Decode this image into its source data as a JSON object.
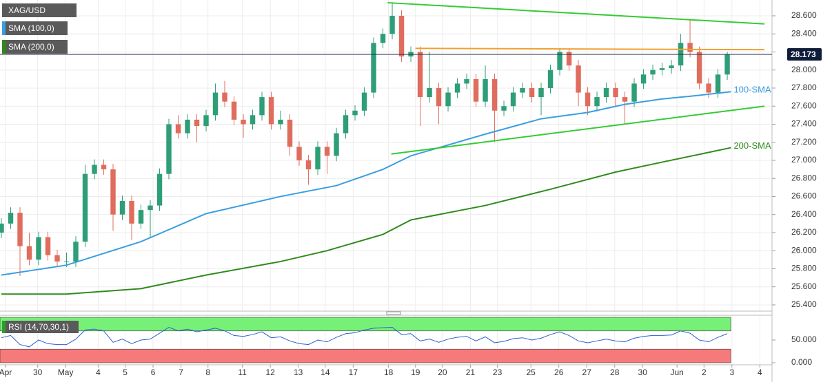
{
  "chart_data": [
    {
      "type": "candlestick",
      "name": "XAG/USD",
      "up_color": "#2e9e76",
      "down_color": "#e06c5e",
      "x": [
        0,
        1,
        2,
        3,
        4,
        5,
        6,
        7,
        8,
        9,
        10,
        11,
        12,
        13,
        14,
        15,
        16,
        17,
        18,
        19,
        20,
        21,
        22,
        23,
        24,
        25,
        26,
        27,
        28,
        29,
        30,
        31,
        32,
        33,
        34,
        35,
        36,
        37,
        38,
        39,
        40,
        41,
        42,
        43,
        44,
        45,
        46,
        47,
        48,
        49,
        50,
        51,
        52,
        53,
        54,
        55,
        56,
        57,
        58,
        59,
        60,
        61,
        62,
        63,
        64,
        65,
        66,
        67,
        68,
        69,
        70,
        71,
        72,
        73,
        74,
        75,
        76,
        77,
        78
      ],
      "ohlc": [
        [
          26.2,
          26.36,
          26.14,
          26.3
        ],
        [
          26.3,
          26.48,
          26.24,
          26.42
        ],
        [
          26.42,
          26.48,
          25.72,
          26.05
        ],
        [
          26.05,
          26.2,
          25.84,
          25.9
        ],
        [
          25.9,
          26.21,
          25.84,
          26.15
        ],
        [
          26.15,
          26.21,
          25.89,
          25.95
        ],
        [
          25.95,
          26.01,
          25.82,
          25.88
        ],
        [
          25.88,
          25.98,
          25.82,
          25.88
        ],
        [
          25.88,
          26.16,
          25.82,
          26.1
        ],
        [
          26.1,
          26.95,
          26.04,
          26.85
        ],
        [
          26.85,
          27.01,
          26.79,
          26.95
        ],
        [
          26.95,
          27.01,
          26.84,
          26.9
        ],
        [
          26.9,
          26.96,
          26.22,
          26.4
        ],
        [
          26.4,
          26.61,
          26.34,
          26.55
        ],
        [
          26.55,
          26.61,
          26.12,
          26.3
        ],
        [
          26.3,
          26.51,
          26.24,
          26.45
        ],
        [
          26.45,
          26.56,
          26.15,
          26.5
        ],
        [
          26.5,
          26.91,
          26.44,
          26.85
        ],
        [
          26.85,
          27.46,
          26.79,
          27.4
        ],
        [
          27.4,
          27.5,
          27.24,
          27.3
        ],
        [
          27.3,
          27.51,
          27.24,
          27.45
        ],
        [
          27.45,
          27.51,
          27.2,
          27.38
        ],
        [
          27.38,
          27.56,
          27.32,
          27.5
        ],
        [
          27.5,
          27.85,
          27.44,
          27.75
        ],
        [
          27.75,
          27.88,
          27.59,
          27.65
        ],
        [
          27.65,
          27.71,
          27.39,
          27.45
        ],
        [
          27.45,
          27.51,
          27.25,
          27.4
        ],
        [
          27.4,
          27.56,
          27.34,
          27.5
        ],
        [
          27.5,
          27.76,
          27.44,
          27.7
        ],
        [
          27.7,
          27.76,
          27.34,
          27.4
        ],
        [
          27.4,
          27.55,
          27.34,
          27.45
        ],
        [
          27.45,
          27.51,
          27.05,
          27.15
        ],
        [
          27.15,
          27.21,
          26.94,
          27.0
        ],
        [
          27.0,
          27.06,
          26.73,
          26.9
        ],
        [
          26.9,
          27.21,
          26.84,
          27.15
        ],
        [
          27.15,
          27.21,
          26.85,
          27.05
        ],
        [
          27.05,
          27.36,
          26.99,
          27.3
        ],
        [
          27.3,
          27.56,
          27.24,
          27.5
        ],
        [
          27.5,
          27.61,
          27.44,
          27.55
        ],
        [
          27.55,
          27.81,
          27.49,
          27.75
        ],
        [
          27.75,
          28.36,
          27.69,
          28.3
        ],
        [
          28.3,
          28.46,
          28.24,
          28.4
        ],
        [
          28.4,
          28.75,
          28.34,
          28.6
        ],
        [
          28.6,
          28.66,
          28.09,
          28.15
        ],
        [
          28.15,
          28.26,
          28.09,
          28.2
        ],
        [
          28.2,
          28.26,
          27.38,
          27.7
        ],
        [
          27.7,
          28.2,
          27.64,
          27.8
        ],
        [
          27.8,
          27.86,
          27.4,
          27.6
        ],
        [
          27.6,
          27.81,
          27.54,
          27.75
        ],
        [
          27.75,
          27.91,
          27.69,
          27.85
        ],
        [
          27.85,
          27.96,
          27.79,
          27.9
        ],
        [
          27.9,
          27.96,
          27.59,
          27.65
        ],
        [
          27.65,
          28.05,
          27.59,
          27.9
        ],
        [
          27.9,
          27.96,
          27.2,
          27.55
        ],
        [
          27.55,
          27.66,
          27.49,
          27.6
        ],
        [
          27.6,
          27.81,
          27.54,
          27.75
        ],
        [
          27.75,
          27.86,
          27.69,
          27.8
        ],
        [
          27.8,
          27.86,
          27.64,
          27.7
        ],
        [
          27.7,
          27.86,
          27.5,
          27.8
        ],
        [
          27.8,
          28.06,
          27.74,
          28.0
        ],
        [
          28.0,
          28.23,
          27.94,
          28.2
        ],
        [
          28.2,
          28.23,
          27.99,
          28.05
        ],
        [
          28.05,
          28.11,
          27.6,
          27.75
        ],
        [
          27.75,
          27.81,
          27.5,
          27.6
        ],
        [
          27.6,
          27.76,
          27.54,
          27.7
        ],
        [
          27.7,
          27.86,
          27.64,
          27.8
        ],
        [
          27.8,
          27.86,
          27.6,
          27.7
        ],
        [
          27.7,
          27.76,
          27.4,
          27.65
        ],
        [
          27.65,
          27.91,
          27.59,
          27.85
        ],
        [
          27.85,
          28.01,
          27.79,
          27.95
        ],
        [
          27.95,
          28.06,
          27.89,
          28.0
        ],
        [
          28.0,
          28.08,
          27.94,
          28.02
        ],
        [
          28.02,
          28.11,
          27.96,
          28.05
        ],
        [
          28.05,
          28.4,
          27.99,
          28.3
        ],
        [
          28.3,
          28.55,
          28.14,
          28.2
        ],
        [
          28.2,
          28.26,
          27.79,
          27.85
        ],
        [
          27.85,
          27.91,
          27.69,
          27.75
        ],
        [
          27.75,
          28.01,
          27.69,
          27.95
        ],
        [
          27.95,
          28.2,
          27.89,
          28.173
        ]
      ],
      "series": [
        {
          "name": "SMA (100,0)",
          "label": "100-SMA",
          "color": "#3a9ee0",
          "x": [
            0,
            7,
            15,
            22,
            30,
            36,
            41,
            44,
            52,
            58,
            63,
            67,
            71,
            75,
            78.4
          ],
          "values": [
            25.73,
            25.84,
            26.1,
            26.41,
            26.6,
            26.72,
            26.9,
            27.05,
            27.29,
            27.46,
            27.53,
            27.62,
            27.68,
            27.72,
            27.76
          ]
        },
        {
          "name": "SMA (200,0)",
          "label": "200-SMA",
          "color": "#2f8a1d",
          "x": [
            0,
            7,
            15,
            22,
            30,
            35,
            41,
            44,
            52,
            59,
            66,
            71,
            78.4
          ],
          "values": [
            25.52,
            25.52,
            25.58,
            25.73,
            25.88,
            26.0,
            26.18,
            26.34,
            26.5,
            26.68,
            26.87,
            26.98,
            27.14
          ]
        }
      ],
      "trendlines": [
        {
          "color": "#33cc33",
          "x": [
            41.5,
            82
          ],
          "values": [
            28.745,
            28.51
          ]
        },
        {
          "color": "#f0a030",
          "x": [
            44.5,
            82
          ],
          "values": [
            28.24,
            28.225
          ]
        },
        {
          "color": "#33cc33",
          "x": [
            41.9,
            82
          ],
          "values": [
            27.07,
            27.6
          ]
        }
      ],
      "last_price": 28.173,
      "xlim": [
        -0.148,
        82.81
      ],
      "xticks": [
        {
          "value": 0.44,
          "label": "Apr"
        },
        {
          "value": 3.9,
          "label": "30"
        },
        {
          "value": 6.9,
          "label": "May"
        },
        {
          "value": 10.4,
          "label": "4"
        },
        {
          "value": 13.3,
          "label": "5"
        },
        {
          "value": 16.3,
          "label": "6"
        },
        {
          "value": 19.3,
          "label": "7"
        },
        {
          "value": 22.2,
          "label": "8"
        },
        {
          "value": 25.9,
          "label": "11"
        },
        {
          "value": 28.9,
          "label": "12"
        },
        {
          "value": 31.9,
          "label": "13"
        },
        {
          "value": 34.8,
          "label": "14"
        },
        {
          "value": 37.8,
          "label": "17"
        },
        {
          "value": 41.6,
          "label": "18"
        },
        {
          "value": 44.5,
          "label": "19"
        },
        {
          "value": 47.4,
          "label": "20"
        },
        {
          "value": 50.4,
          "label": "21"
        },
        {
          "value": 53.3,
          "label": "23"
        },
        {
          "value": 56.9,
          "label": "25"
        },
        {
          "value": 59.9,
          "label": "26"
        },
        {
          "value": 62.9,
          "label": "27"
        },
        {
          "value": 65.9,
          "label": "28"
        },
        {
          "value": 68.9,
          "label": "30"
        },
        {
          "value": 72.6,
          "label": "Jun"
        },
        {
          "value": 75.5,
          "label": "2"
        },
        {
          "value": 78.5,
          "label": "3"
        },
        {
          "value": 81.5,
          "label": "4"
        }
      ],
      "ylim": [
        25.331,
        28.775
      ],
      "yticks": [
        {
          "value": 28.6,
          "label": "28.600"
        },
        {
          "value": 28.4,
          "label": "28.400"
        },
        {
          "value": 28.2,
          "label": "28.200"
        },
        {
          "value": 28.0,
          "label": "28.000"
        },
        {
          "value": 27.8,
          "label": "27.800"
        },
        {
          "value": 27.6,
          "label": "27.600"
        },
        {
          "value": 27.4,
          "label": "27.400"
        },
        {
          "value": 27.2,
          "label": "27.200"
        },
        {
          "value": 27.0,
          "label": "27.000"
        },
        {
          "value": 26.8,
          "label": "26.800"
        },
        {
          "value": 26.6,
          "label": "26.600"
        },
        {
          "value": 26.4,
          "label": "26.400"
        },
        {
          "value": 26.2,
          "label": "26.200"
        },
        {
          "value": 26.0,
          "label": "26.000"
        },
        {
          "value": 25.8,
          "label": "25.800"
        },
        {
          "value": 25.6,
          "label": "25.600"
        },
        {
          "value": 25.4,
          "label": "25.400"
        }
      ],
      "grid": true
    },
    {
      "type": "line",
      "name": "RSI (14,70,30,1)",
      "series": [
        {
          "color": "#2a5fd0",
          "values": [
            55,
            60,
            40,
            35,
            50,
            42,
            40,
            40,
            52,
            72,
            74,
            70,
            45,
            52,
            42,
            50,
            52,
            65,
            78,
            70,
            74,
            68,
            72,
            76,
            70,
            60,
            58,
            62,
            68,
            55,
            57,
            48,
            42,
            40,
            50,
            46,
            56,
            64,
            66,
            72,
            76,
            77,
            78,
            62,
            64,
            48,
            52,
            45,
            52,
            56,
            58,
            48,
            57,
            44,
            47,
            53,
            55,
            50,
            54,
            62,
            68,
            60,
            48,
            44,
            48,
            52,
            48,
            46,
            54,
            58,
            60,
            60,
            61,
            70,
            65,
            50,
            46,
            56,
            64
          ]
        }
      ],
      "overbought": 70,
      "overbought_color": "#77f077",
      "oversold": 30,
      "oversold_color": "#f77a7a",
      "ylim": [
        -4.5,
        104.5
      ],
      "yticks": [
        {
          "value": 50,
          "label": "50.000"
        },
        {
          "value": 0,
          "label": "0.000"
        }
      ]
    }
  ]
}
